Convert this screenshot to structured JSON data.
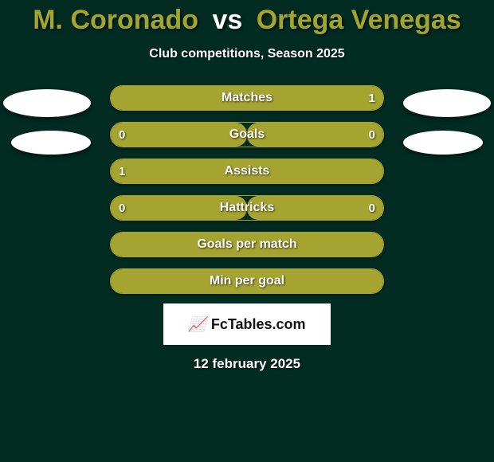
{
  "colors": {
    "background": "#022c22",
    "player1": "#a6a431",
    "player2": "#a6a431",
    "vs": "#ffffff",
    "bar_fill": "#a6a431",
    "bar_border": "#a6a431",
    "text": "#ffffff"
  },
  "title": {
    "player1": "M. Coronado",
    "vs": "vs",
    "player2": "Ortega Venegas"
  },
  "subtitle": "Club competitions, Season 2025",
  "stats": [
    {
      "label": "Matches",
      "left_val": "",
      "right_val": "1",
      "left_pct": 0,
      "right_pct": 100
    },
    {
      "label": "Goals",
      "left_val": "0",
      "right_val": "0",
      "left_pct": 50,
      "right_pct": 50
    },
    {
      "label": "Assists",
      "left_val": "1",
      "right_val": "",
      "left_pct": 100,
      "right_pct": 0
    },
    {
      "label": "Hattricks",
      "left_val": "0",
      "right_val": "0",
      "left_pct": 50,
      "right_pct": 50
    },
    {
      "label": "Goals per match",
      "left_val": "",
      "right_val": "",
      "left_pct": 100,
      "right_pct": 0
    },
    {
      "label": "Min per goal",
      "left_val": "",
      "right_val": "",
      "left_pct": 100,
      "right_pct": 0
    }
  ],
  "logo": {
    "icon": "📈",
    "text": "FcTables.com"
  },
  "date": "12 february 2025"
}
